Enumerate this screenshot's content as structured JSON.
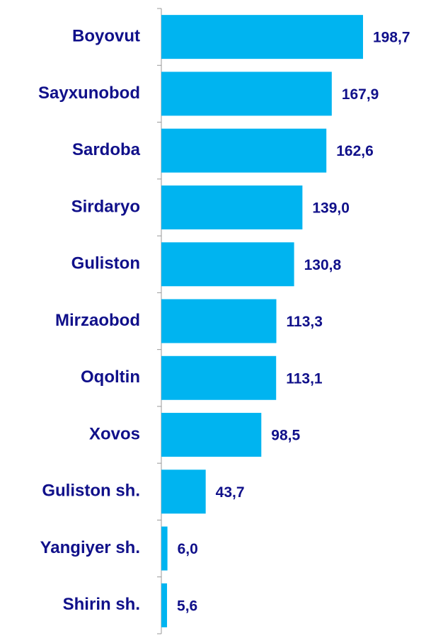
{
  "chart_data": {
    "type": "hbar",
    "categories": [
      "Boyovut",
      "Sayxunobod",
      "Sardoba",
      "Sirdaryo",
      "Guliston",
      "Mirzaobod",
      "Oqoltin",
      "Xovos",
      "Guliston sh.",
      "Yangiyer sh.",
      "Shirin sh."
    ],
    "values": [
      198.7,
      167.9,
      162.6,
      139.0,
      130.8,
      113.3,
      113.1,
      98.5,
      43.7,
      6.0,
      5.6
    ],
    "value_labels": [
      "198,7",
      "167,9",
      "162,6",
      "139,0",
      "130,8",
      "113,3",
      "113,1",
      "98,5",
      "43,7",
      "6,0",
      "5,6"
    ],
    "color": "#00b4f0"
  }
}
